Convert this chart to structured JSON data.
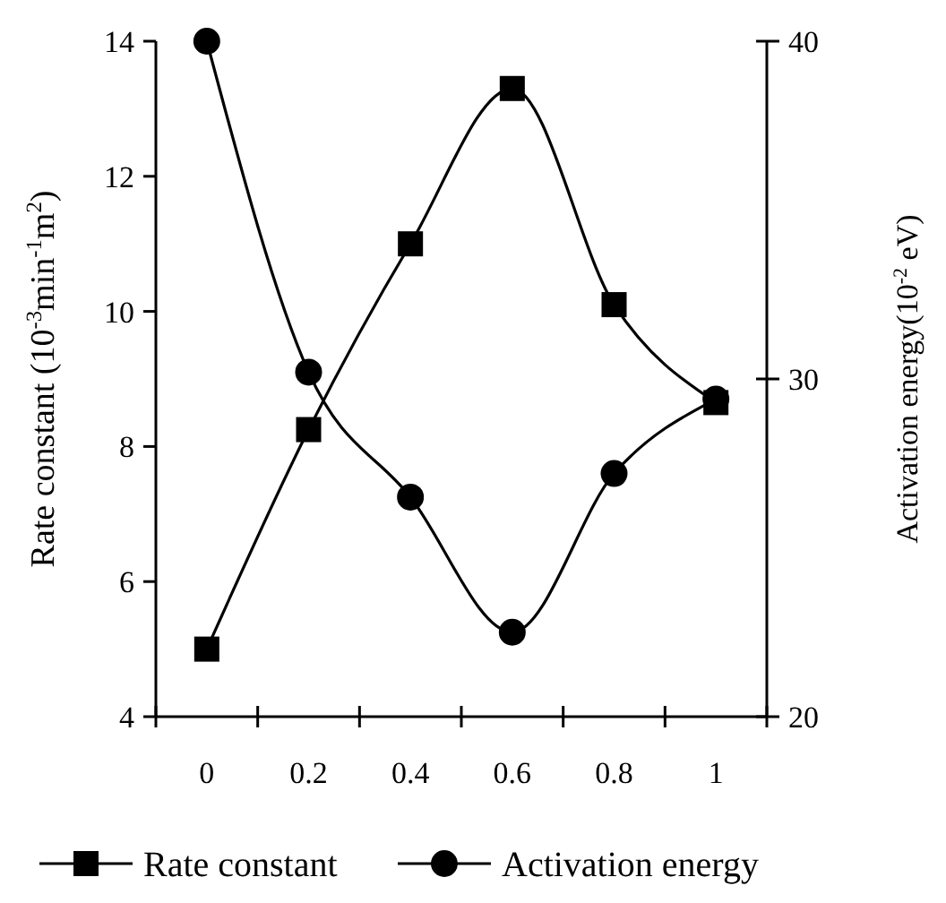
{
  "chart_data": {
    "type": "line",
    "categories": [
      "0",
      "0.2",
      "0.4",
      "0.6",
      "0.8",
      "1"
    ],
    "ylabel": "Rate constant (10$^{-3}$min$^{-1}$m$^{2}$)",
    "y2label": "Activation energy(10$^{-2}$ eV)",
    "ylim": [
      4,
      14
    ],
    "yticks": [
      4,
      6,
      8,
      10,
      12,
      14
    ],
    "y2lim": [
      20,
      40
    ],
    "y2ticks": [
      20,
      30,
      40
    ],
    "series": [
      {
        "name": "Rate constant",
        "color": "#000000",
        "marker": "square",
        "values": [
          5.0,
          8.25,
          11.0,
          13.3,
          10.1,
          8.65
        ]
      },
      {
        "name": "Activation energy",
        "color": "#000000",
        "marker": "circle",
        "axis": "y2",
        "values": [
          40,
          30.2,
          26.5,
          22.5,
          27.2,
          29.4
        ]
      }
    ],
    "legend": "bottom",
    "grid": false,
    "line_style": "solid"
  }
}
